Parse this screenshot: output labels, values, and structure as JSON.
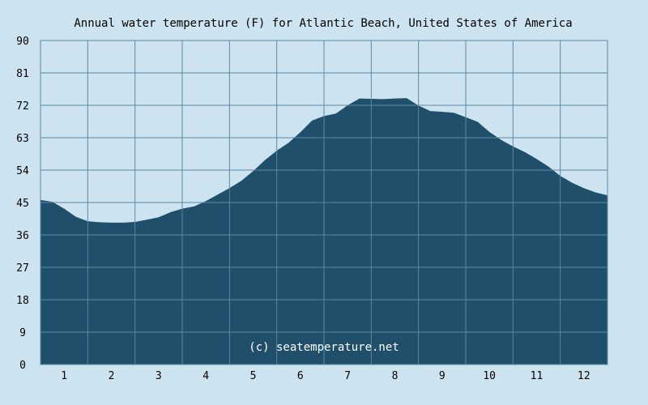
{
  "chart_data": {
    "type": "area",
    "title": "Annual water temperature (F) for Atlantic Beach, United States of America",
    "xlabel": "",
    "ylabel": "",
    "x_ticks": [
      "1",
      "2",
      "3",
      "4",
      "5",
      "6",
      "7",
      "8",
      "9",
      "10",
      "11",
      "12"
    ],
    "y_ticks": [
      "0",
      "9",
      "18",
      "27",
      "36",
      "45",
      "54",
      "63",
      "72",
      "81",
      "90"
    ],
    "xlim": [
      0.5,
      12.5
    ],
    "ylim": [
      0,
      90
    ],
    "grid": true,
    "watermark": "(c) seatemperature.net",
    "fill_color": "#1f4f6b",
    "grid_color": "#5a88a5",
    "background_color": "#cde3ef",
    "series": [
      {
        "x": [
          0.5,
          0.75,
          1.0,
          1.25,
          1.5,
          1.75,
          2.0,
          2.25,
          2.5,
          2.75,
          3.0,
          3.25,
          3.5,
          3.75,
          4.0,
          4.25,
          4.5,
          4.75,
          5.0,
          5.25,
          5.5,
          5.75,
          6.0,
          6.25,
          6.5,
          6.75,
          7.0,
          7.25,
          7.5,
          7.75,
          8.0,
          8.25,
          8.5,
          8.75,
          9.0,
          9.25,
          9.5,
          9.75,
          10.0,
          10.25,
          10.5,
          10.75,
          11.0,
          11.25,
          11.5,
          11.75,
          12.0,
          12.25,
          12.5
        ],
        "values": [
          45.7,
          45.2,
          43.3,
          41.0,
          39.8,
          39.5,
          39.4,
          39.4,
          39.6,
          40.2,
          40.9,
          42.3,
          43.3,
          43.9,
          45.4,
          47.2,
          49.0,
          51.0,
          53.7,
          56.8,
          59.4,
          61.6,
          64.5,
          67.8,
          69.0,
          69.7,
          72.0,
          73.9,
          73.8,
          73.7,
          73.9,
          74.0,
          71.9,
          70.4,
          70.2,
          69.9,
          68.7,
          67.4,
          64.6,
          62.4,
          60.6,
          59.0,
          57.1,
          55.0,
          52.4,
          50.5,
          49.0,
          47.8,
          47.0
        ]
      }
    ]
  }
}
